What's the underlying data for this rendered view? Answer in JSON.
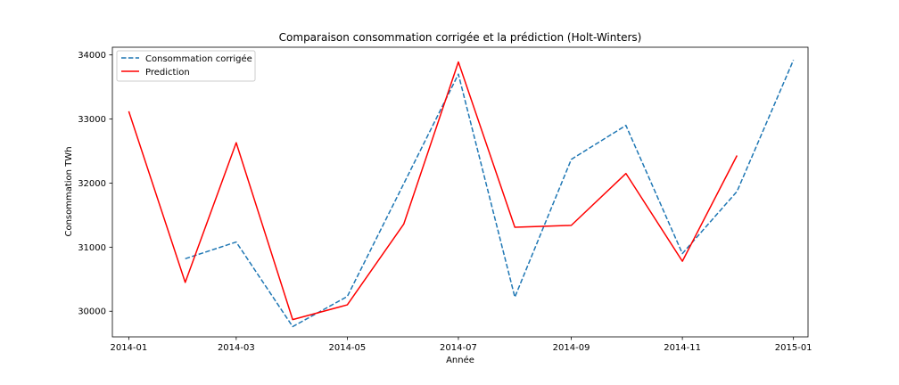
{
  "chart_data": {
    "type": "line",
    "title": "Comparaison consommation corrigée et la prédiction (Holt-Winters)",
    "xlabel": "Année",
    "ylabel": "Consommation TWh",
    "xlim": [
      "2013-12-23",
      "2015-01-09"
    ],
    "ylim": [
      29600,
      34120
    ],
    "x_ticks": [
      "2014-01-01",
      "2014-03-01",
      "2014-05-01",
      "2014-07-01",
      "2014-09-01",
      "2014-11-01",
      "2015-01-01"
    ],
    "x_tick_labels": [
      "2014-01",
      "2014-03",
      "2014-05",
      "2014-07",
      "2014-09",
      "2014-11",
      "2015-01"
    ],
    "y_ticks": [
      30000,
      31000,
      32000,
      33000,
      34000
    ],
    "y_tick_labels": [
      "30000",
      "31000",
      "32000",
      "33000",
      "34000"
    ],
    "grid": false,
    "legend_position": "upper-left",
    "series": [
      {
        "name": "Consommation corrigée",
        "color": "#1f77b4",
        "style": "dashed",
        "x": [
          "2014-02-01",
          "2014-03-01",
          "2014-04-01",
          "2014-05-01",
          "2014-06-01",
          "2014-07-01",
          "2014-08-01",
          "2014-09-01",
          "2014-10-01",
          "2014-11-01",
          "2014-12-01",
          "2015-01-01"
        ],
        "values": [
          30820,
          31080,
          29760,
          30230,
          31990,
          33700,
          30220,
          32370,
          32900,
          30900,
          31870,
          33920
        ]
      },
      {
        "name": "Prediction",
        "color": "#ff0000",
        "style": "solid",
        "x": [
          "2014-01-01",
          "2014-02-01",
          "2014-03-01",
          "2014-04-01",
          "2014-05-01",
          "2014-06-01",
          "2014-07-01",
          "2014-08-01",
          "2014-09-01",
          "2014-10-01",
          "2014-11-01",
          "2014-12-01"
        ],
        "values": [
          33120,
          30450,
          32630,
          29870,
          30100,
          31360,
          33890,
          31310,
          31340,
          32150,
          30780,
          32430
        ]
      }
    ]
  }
}
